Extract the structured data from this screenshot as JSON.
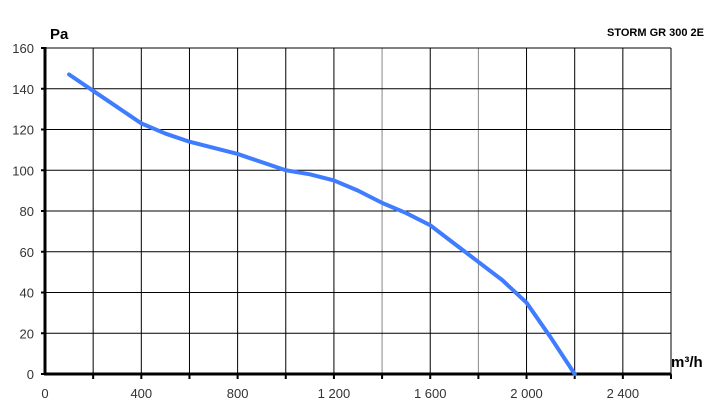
{
  "chart_data": {
    "type": "line",
    "title": "STORM GR 300 2E",
    "xlabel": "m³/h",
    "ylabel": "Pa",
    "xlim": [
      0,
      2600
    ],
    "ylim": [
      0,
      160
    ],
    "grid": true,
    "x_ticks": [
      0,
      200,
      400,
      600,
      800,
      1000,
      1200,
      1400,
      1600,
      1800,
      2000,
      2200,
      2400,
      2600
    ],
    "x_tick_labels": [
      "0",
      "400",
      "800",
      "1 200",
      "1 600",
      "2 000",
      "2 400"
    ],
    "x_tick_label_values": [
      0,
      400,
      800,
      1200,
      1600,
      2000,
      2400
    ],
    "y_ticks": [
      0,
      20,
      40,
      60,
      80,
      100,
      120,
      140,
      160
    ],
    "y_tick_labels": [
      "0",
      "20",
      "40",
      "60",
      "80",
      "100",
      "120",
      "140",
      "160"
    ],
    "series": [
      {
        "color": "#3f7cff",
        "x": [
          100,
          200,
          300,
          400,
          500,
          600,
          700,
          800,
          900,
          1000,
          1100,
          1200,
          1300,
          1400,
          1500,
          1600,
          1700,
          1800,
          1900,
          2000,
          2100,
          2200
        ],
        "y": [
          147,
          139,
          131,
          123,
          118,
          114,
          111,
          108,
          104,
          100,
          98,
          95,
          90,
          84,
          79,
          73,
          64,
          55,
          46,
          35,
          18,
          0
        ]
      }
    ]
  }
}
